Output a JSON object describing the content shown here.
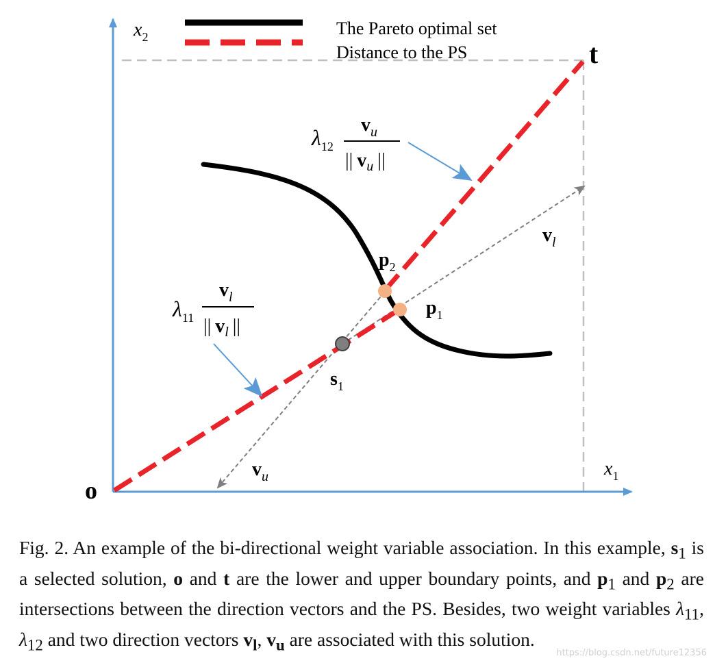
{
  "legend": {
    "items": [
      {
        "label": "The Pareto optimal set",
        "color": "#000000",
        "style": "solid"
      },
      {
        "label": "Distance to the PS",
        "color": "#e8242a",
        "style": "dashed"
      }
    ]
  },
  "axes": {
    "x_label": "x",
    "x_sub": "1",
    "y_label": "x",
    "y_sub": "2",
    "color": "#5b9bd5"
  },
  "points": {
    "origin": "o",
    "upper": "t",
    "s1": {
      "name": "s",
      "sub": "1"
    },
    "p1": {
      "name": "p",
      "sub": "1"
    },
    "p2": {
      "name": "p",
      "sub": "2"
    }
  },
  "vectors": {
    "vl": {
      "name": "v",
      "sub": "l"
    },
    "vu": {
      "name": "v",
      "sub": "u"
    }
  },
  "annotations": {
    "lambda11": {
      "symbol": "λ",
      "sub": "11",
      "num": "v",
      "num_sub": "l",
      "den_left": "||",
      "den_v": "v",
      "den_sub": "l",
      "den_right": "||"
    },
    "lambda12": {
      "symbol": "λ",
      "sub": "12",
      "num": "v",
      "num_sub": "u",
      "den_left": "||",
      "den_v": "v",
      "den_sub": "u",
      "den_right": "||"
    }
  },
  "colors": {
    "ps_curve": "#000000",
    "distance": "#e8242a",
    "intersection": "#f4b183",
    "solution": "#7f7f7f",
    "direction_vector": "#7f7f7f",
    "boundary": "#bfbfbf",
    "annotation_arrow": "#5b9bd5"
  },
  "caption": {
    "lead": "Fig. 2.  An example of the bi-directional weight variable association. In this example, ",
    "s": "s",
    "s_sub": "1",
    "t1": " is a selected solution, ",
    "o": "o",
    "t2": " and ",
    "t": "t",
    "t3": " are the lower and upper boundary points, and ",
    "p1": "p",
    "p1_sub": "1",
    "t4": " and ",
    "p2": "p",
    "p2_sub": "2",
    "t5": " are intersections between the direction vectors and the PS. Besides, two weight variables ",
    "lam": "λ",
    "lam11_sub": "11",
    "comma1": ", ",
    "lam2": "λ",
    "lam12_sub": "12",
    "t6": " and two direction vectors ",
    "vl": "v",
    "vl_sub": "l",
    "comma2": ", ",
    "vu": "v",
    "vu_sub": "u",
    "t7": " are associated with this solution."
  },
  "watermark": "https://blog.csdn.net/future12356"
}
